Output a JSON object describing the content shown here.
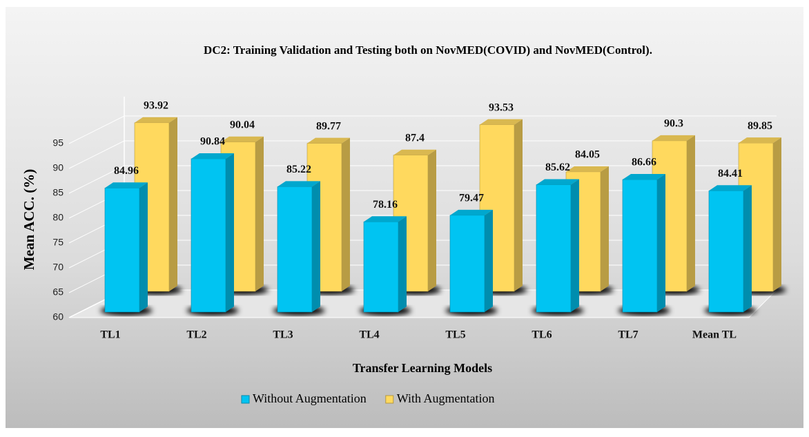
{
  "chart_data": {
    "type": "bar3d",
    "title": "DC2: Training Validation and Testing both on NovMED(COVID) and NovMED(Control).",
    "x_label": "Transfer Learning Models",
    "y_label": "Mean ACC. (%)",
    "categories": [
      "TL1",
      "TL2",
      "TL3",
      "TL4",
      "TL5",
      "TL6",
      "TL7",
      "Mean TL"
    ],
    "series": [
      {
        "name": "Without Augmentation",
        "color": "#00c4f2",
        "values": [
          84.96,
          90.84,
          85.22,
          78.16,
          79.47,
          85.62,
          86.66,
          84.41
        ]
      },
      {
        "name": "With Augmentation",
        "color": "#ffd95e",
        "values": [
          93.92,
          90.04,
          89.77,
          87.4,
          93.53,
          84.05,
          90.3,
          89.85
        ]
      }
    ],
    "ylim": [
      60,
      100
    ],
    "yticks": [
      60,
      65,
      70,
      75,
      80,
      85,
      90,
      95
    ],
    "grid": true,
    "legend": "bottom"
  }
}
